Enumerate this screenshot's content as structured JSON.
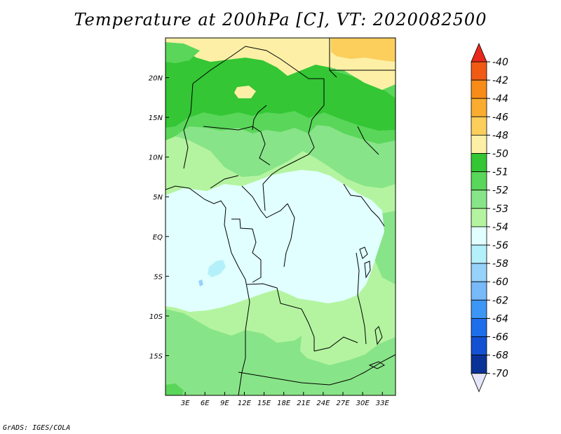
{
  "title": "Temperature at 200hPa [C], VT: 2020082500",
  "credit": "GrADS: IGES/COLA",
  "map": {
    "lon_range": [
      0,
      35
    ],
    "lat_range": [
      -20,
      25
    ],
    "x_ticks": [
      "3E",
      "6E",
      "9E",
      "12E",
      "15E",
      "18E",
      "21E",
      "24E",
      "27E",
      "30E",
      "33E"
    ],
    "x_tick_values": [
      3,
      6,
      9,
      12,
      15,
      18,
      21,
      24,
      27,
      30,
      33
    ],
    "y_ticks": [
      "20N",
      "15N",
      "10N",
      "5N",
      "EQ",
      "5S",
      "10S",
      "15S"
    ],
    "y_tick_values": [
      20,
      15,
      10,
      5,
      0,
      -5,
      -10,
      -15
    ]
  },
  "colorbar": {
    "labels": [
      "-40",
      "-42",
      "-44",
      "-46",
      "-48",
      "-50",
      "-51",
      "-52",
      "-53",
      "-54",
      "-56",
      "-58",
      "-60",
      "-62",
      "-64",
      "-66",
      "-68",
      "-70"
    ],
    "colors": [
      "#e8281c",
      "#f05a14",
      "#f88c1a",
      "#f9ac30",
      "#fcce5c",
      "#fdf0a6",
      "#34c634",
      "#5ad65a",
      "#88e488",
      "#b4f4a0",
      "#e1ffff",
      "#b4f0fa",
      "#96d2fa",
      "#78b9fa",
      "#3c96f5",
      "#1e6eeb",
      "#1450d2",
      "#0a3296",
      "#000080",
      "#e6e6fa"
    ]
  }
}
